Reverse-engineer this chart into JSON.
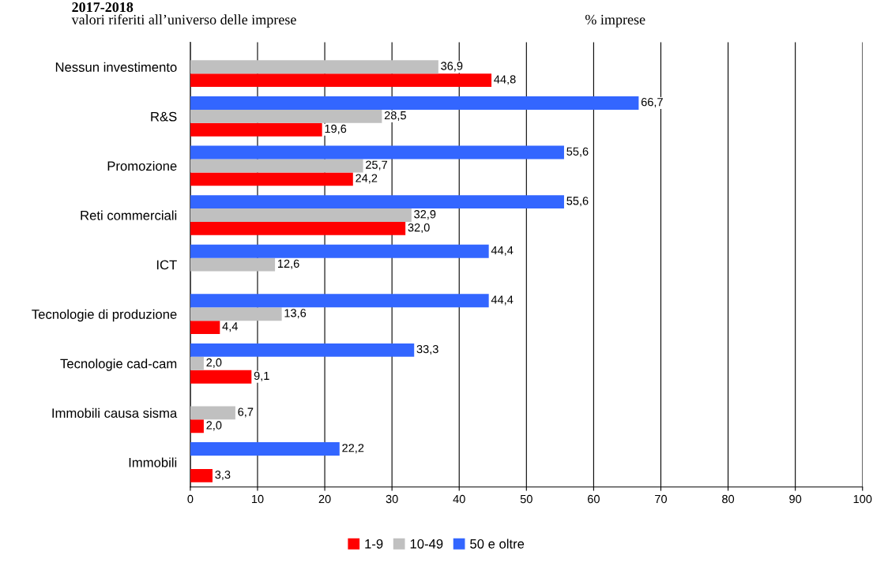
{
  "chart_data": {
    "type": "bar",
    "orientation": "horizontal",
    "title": "2017-2018",
    "subtitle": "valori riferiti all’universo delle imprese",
    "annotations": [
      "% imprese"
    ],
    "categories": [
      "Nessun investimento",
      "R&S",
      "Promozione",
      "Reti commerciali",
      "ICT",
      "Tecnologie di produzione",
      "Tecnologie cad-cam",
      "Immobili causa sisma",
      "Immobili"
    ],
    "series": [
      {
        "name": "1-9",
        "color": "#ff0000",
        "values": [
          44.8,
          19.6,
          24.2,
          32.0,
          null,
          4.4,
          9.1,
          2.0,
          3.3
        ],
        "value_labels": [
          "44,8",
          "19,6",
          "24,2",
          "32,0",
          null,
          "4,4",
          "9,1",
          "2,0",
          "3,3"
        ]
      },
      {
        "name": "10-49",
        "color": "#c0c0c0",
        "values": [
          36.9,
          28.5,
          25.7,
          32.9,
          12.6,
          13.6,
          2.0,
          6.7,
          null
        ],
        "value_labels": [
          "36,9",
          "28,5",
          "25,7",
          "32,9",
          "12,6",
          "13,6",
          "2,0",
          "6,7",
          null
        ]
      },
      {
        "name": "50 e oltre",
        "color": "#3366ff",
        "values": [
          null,
          66.7,
          55.6,
          55.6,
          44.4,
          44.4,
          33.3,
          null,
          22.2
        ],
        "value_labels": [
          null,
          "66,7",
          "55,6",
          "55,6",
          "44,4",
          "44,4",
          "33,3",
          null,
          "22,2"
        ]
      }
    ],
    "xlim": [
      0,
      100
    ],
    "xticks": [
      0,
      10,
      20,
      30,
      40,
      50,
      60,
      70,
      80,
      90,
      100
    ],
    "grid": "x",
    "legend": "bottom"
  }
}
